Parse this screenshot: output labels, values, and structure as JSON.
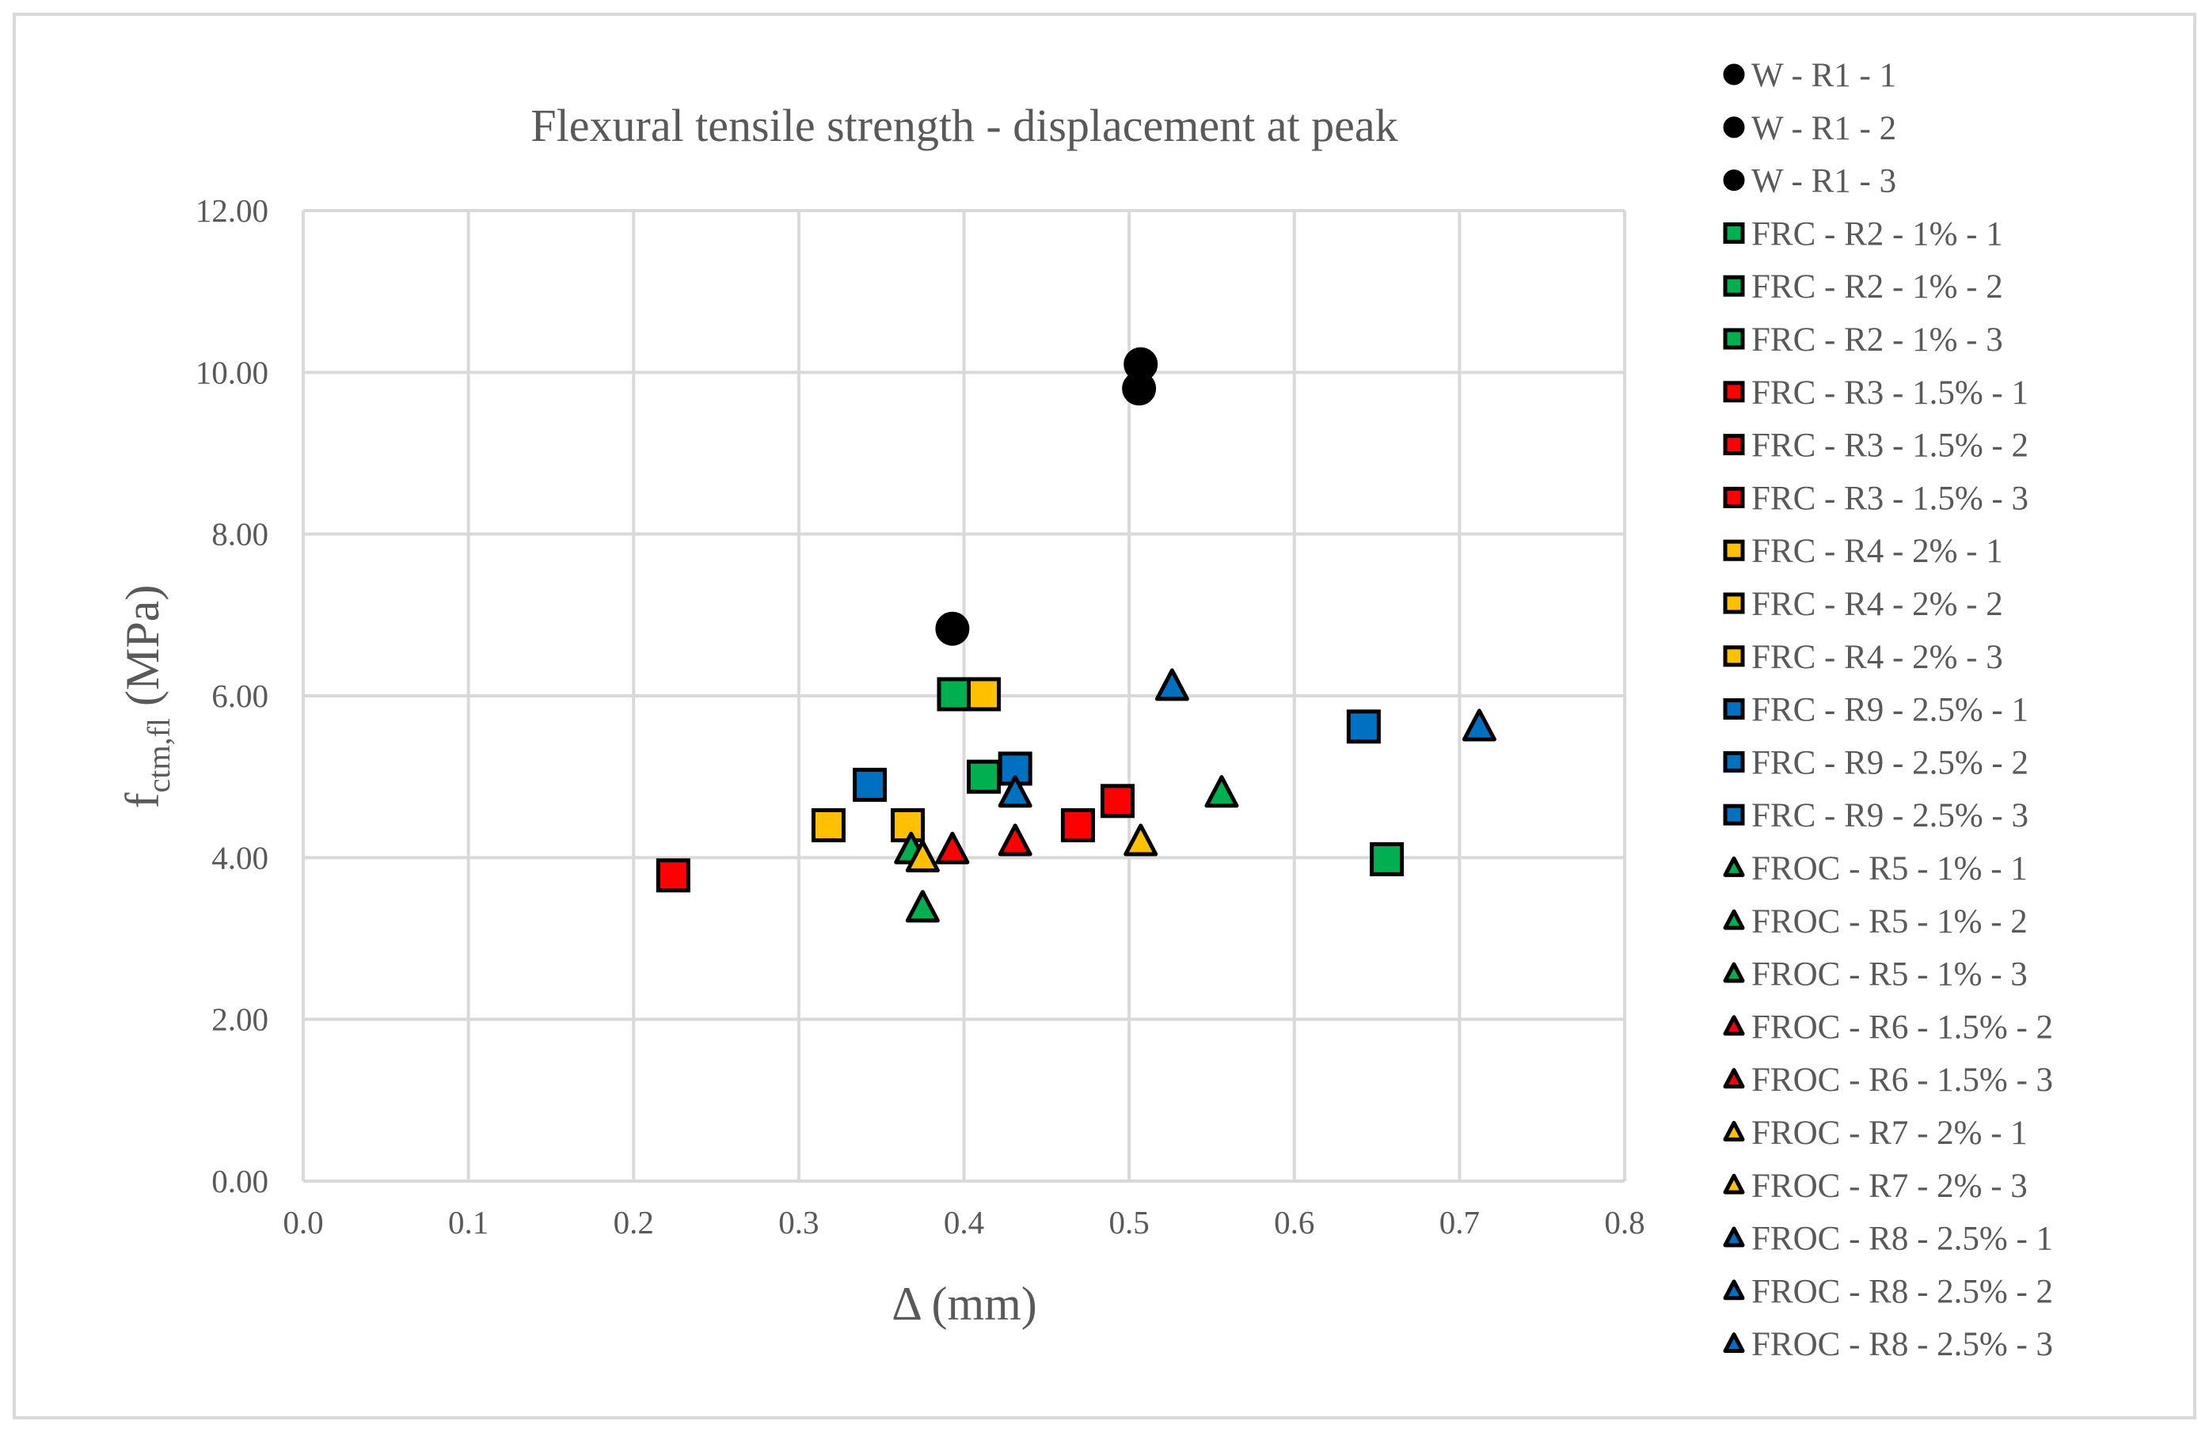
{
  "chart_data": {
    "type": "scatter",
    "title": "Flexural tensile strength - displacement at peak",
    "xlabel": "Δ (mm)",
    "ylabel": {
      "main": "f",
      "subscript": "ctm,fl",
      "suffix": " (MPa)"
    },
    "xlim": [
      0,
      0.8
    ],
    "ylim": [
      0,
      12
    ],
    "x_ticks": [
      "0.0",
      "0.1",
      "0.2",
      "0.3",
      "0.4",
      "0.5",
      "0.6",
      "0.7",
      "0.8"
    ],
    "y_ticks": [
      "0.00",
      "2.00",
      "4.00",
      "6.00",
      "8.00",
      "10.00",
      "12.00"
    ],
    "grid": true,
    "legend_position": "right",
    "series": [
      {
        "name": "W - R1 - 1",
        "marker": "circle",
        "color": "#000000",
        "points": [
          [
            0.393,
            6.83
          ]
        ]
      },
      {
        "name": "W - R1 - 2",
        "marker": "circle",
        "color": "#000000",
        "points": [
          [
            0.506,
            9.8
          ]
        ]
      },
      {
        "name": "W - R1 - 3",
        "marker": "circle",
        "color": "#000000",
        "points": [
          [
            0.507,
            10.1
          ]
        ]
      },
      {
        "name": "FRC - R2 - 1% - 1",
        "marker": "square",
        "color": "#00b050",
        "points": [
          [
            0.394,
            6.02
          ]
        ]
      },
      {
        "name": "FRC - R2 - 1% - 2",
        "marker": "square",
        "color": "#00b050",
        "points": [
          [
            0.412,
            5.0
          ]
        ]
      },
      {
        "name": "FRC - R2 - 1% - 3",
        "marker": "square",
        "color": "#00b050",
        "points": [
          [
            0.656,
            3.98
          ]
        ]
      },
      {
        "name": "FRC - R3 - 1.5% - 1",
        "marker": "square",
        "color": "#ff0000",
        "points": [
          [
            0.224,
            3.78
          ]
        ]
      },
      {
        "name": "FRC - R3 - 1.5% - 2",
        "marker": "square",
        "color": "#ff0000",
        "points": [
          [
            0.469,
            4.4
          ]
        ]
      },
      {
        "name": "FRC - R3 - 1.5% - 3",
        "marker": "square",
        "color": "#ff0000",
        "points": [
          [
            0.493,
            4.7
          ]
        ]
      },
      {
        "name": "FRC - R4 - 2% - 1",
        "marker": "square",
        "color": "#ffc000",
        "points": [
          [
            0.318,
            4.4
          ]
        ]
      },
      {
        "name": "FRC - R4 - 2% - 2",
        "marker": "square",
        "color": "#ffc000",
        "points": [
          [
            0.366,
            4.4
          ]
        ]
      },
      {
        "name": "FRC - R4 - 2% - 3",
        "marker": "square",
        "color": "#ffc000",
        "points": [
          [
            0.412,
            6.02
          ]
        ]
      },
      {
        "name": "FRC - R9 - 2.5% - 1",
        "marker": "square",
        "color": "#0070c0",
        "points": [
          [
            0.343,
            4.9
          ]
        ]
      },
      {
        "name": "FRC - R9 - 2.5% - 2",
        "marker": "square",
        "color": "#0070c0",
        "points": [
          [
            0.431,
            5.1
          ]
        ]
      },
      {
        "name": "FRC - R9 - 2.5% - 3",
        "marker": "square",
        "color": "#0070c0",
        "points": [
          [
            0.642,
            5.62
          ]
        ]
      },
      {
        "name": "FROC - R5 - 1% - 1",
        "marker": "triangle",
        "color": "#00b050",
        "points": [
          [
            0.368,
            4.1
          ]
        ]
      },
      {
        "name": "FROC - R5 - 1% - 2",
        "marker": "triangle",
        "color": "#00b050",
        "points": [
          [
            0.375,
            3.38
          ]
        ]
      },
      {
        "name": "FROC - R5 - 1% - 3",
        "marker": "triangle",
        "color": "#00b050",
        "points": [
          [
            0.556,
            4.8
          ]
        ]
      },
      {
        "name": "FROC - R6 - 1.5% - 2",
        "marker": "triangle",
        "color": "#ff0000",
        "points": [
          [
            0.393,
            4.1
          ]
        ]
      },
      {
        "name": "FROC - R6 - 1.5% - 3",
        "marker": "triangle",
        "color": "#ff0000",
        "points": [
          [
            0.431,
            4.2
          ]
        ]
      },
      {
        "name": "FROC - R7 - 2% - 1",
        "marker": "triangle",
        "color": "#ffc000",
        "points": [
          [
            0.375,
            4.0
          ]
        ]
      },
      {
        "name": "FROC - R7 - 2% - 3",
        "marker": "triangle",
        "color": "#ffc000",
        "points": [
          [
            0.507,
            4.2
          ]
        ]
      },
      {
        "name": "FROC - R8 - 2.5% - 1",
        "marker": "triangle",
        "color": "#0070c0",
        "points": [
          [
            0.431,
            4.8
          ]
        ]
      },
      {
        "name": "FROC - R8 - 2.5% - 2",
        "marker": "triangle",
        "color": "#0070c0",
        "points": [
          [
            0.526,
            6.12
          ]
        ]
      },
      {
        "name": "FROC - R8 - 2.5% - 3",
        "marker": "triangle",
        "color": "#0070c0",
        "points": [
          [
            0.712,
            5.62
          ]
        ]
      }
    ]
  }
}
